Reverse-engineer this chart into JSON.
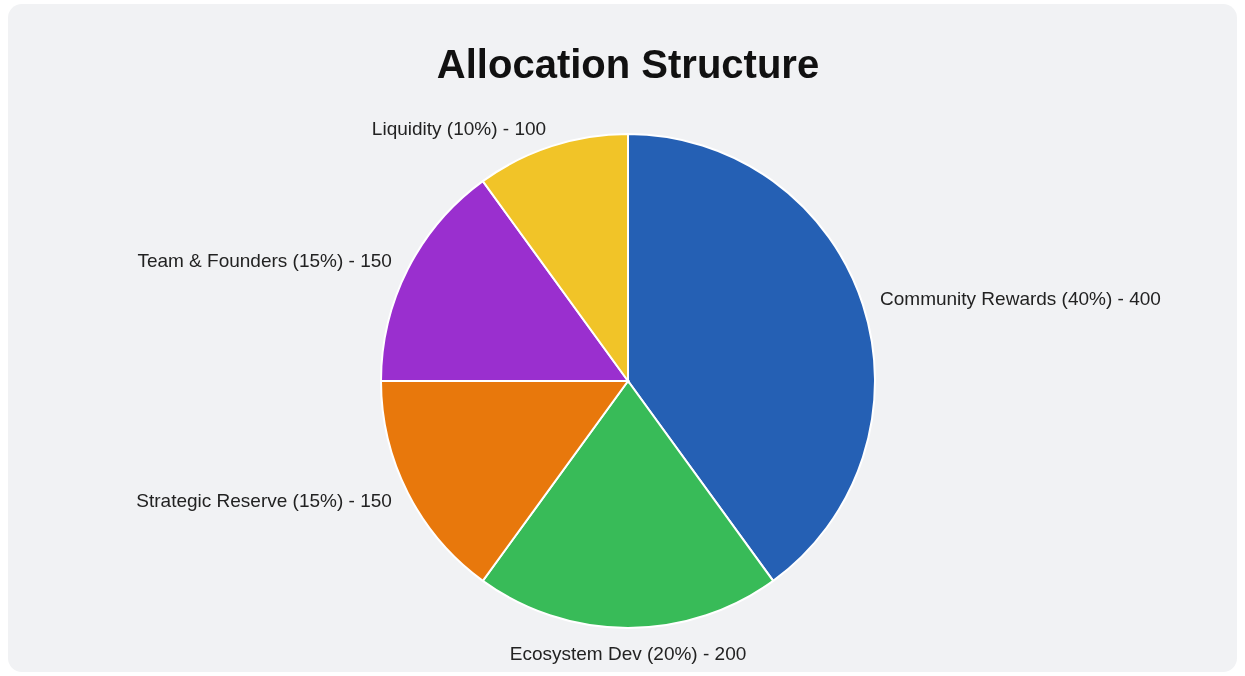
{
  "chart_data": {
    "type": "pie",
    "title": "Allocation Structure",
    "categories": [
      "Community Rewards (40%) - 400",
      "Ecosystem Dev (20%) - 200",
      "Strategic Reserve (15%) - 150",
      "Team & Founders (15%) - 150",
      "Liquidity (10%) - 100"
    ],
    "values": [
      40,
      20,
      15,
      15,
      10
    ],
    "colors": [
      "#2560b4",
      "#38bb58",
      "#e8780c",
      "#9a2fcf",
      "#f1c428"
    ]
  }
}
